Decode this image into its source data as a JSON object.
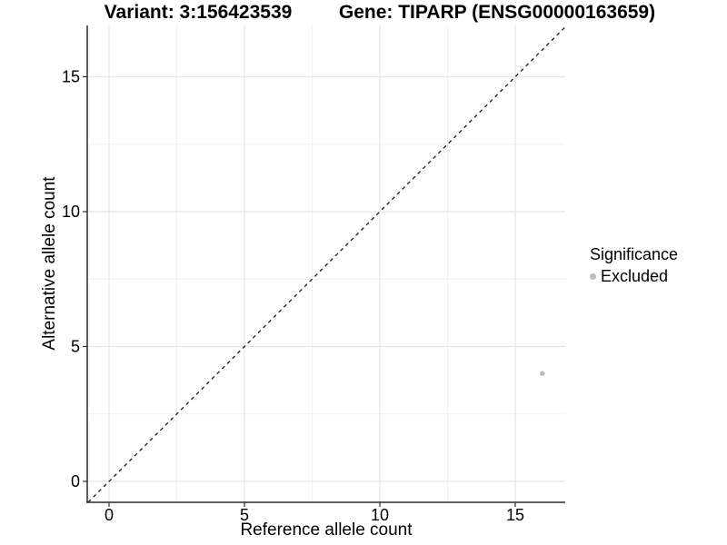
{
  "chart_data": {
    "type": "scatter",
    "titles": {
      "variant": "Variant: 3:156423539",
      "gene": "Gene: TIPARP (ENSG00000163659)"
    },
    "xlabel": "Reference allele count",
    "ylabel": "Alternative allele count",
    "x_ticks": [
      0,
      5,
      10,
      15
    ],
    "y_ticks": [
      0,
      5,
      10,
      15
    ],
    "x_minor_ticks": [
      2.5,
      7.5,
      12.5
    ],
    "y_minor_ticks": [
      2.5,
      7.5,
      12.5
    ],
    "xlim": [
      -0.81,
      16.85
    ],
    "ylim": [
      -0.77,
      16.9
    ],
    "grid": "major and minor gridlines on, white panel background",
    "reference_line": {
      "style": "dashed",
      "slope": 1,
      "intercept": 0,
      "label": "y = x identity line"
    },
    "series": [
      {
        "name": "Excluded",
        "color": "#bebebe",
        "points": [
          {
            "x": 16,
            "y": 4
          }
        ]
      }
    ],
    "legend": {
      "title": "Significance",
      "position": "right",
      "entries": [
        {
          "label": "Excluded",
          "color": "#bebebe"
        }
      ]
    }
  },
  "colors": {
    "background": "#ffffff",
    "text": "#000000",
    "axis": "#2b2b2b",
    "grid_major": "#e4e4e4",
    "grid_minor": "#f0f0f0",
    "dashed_line": "#1a1a1a",
    "point": "#bebebe"
  }
}
